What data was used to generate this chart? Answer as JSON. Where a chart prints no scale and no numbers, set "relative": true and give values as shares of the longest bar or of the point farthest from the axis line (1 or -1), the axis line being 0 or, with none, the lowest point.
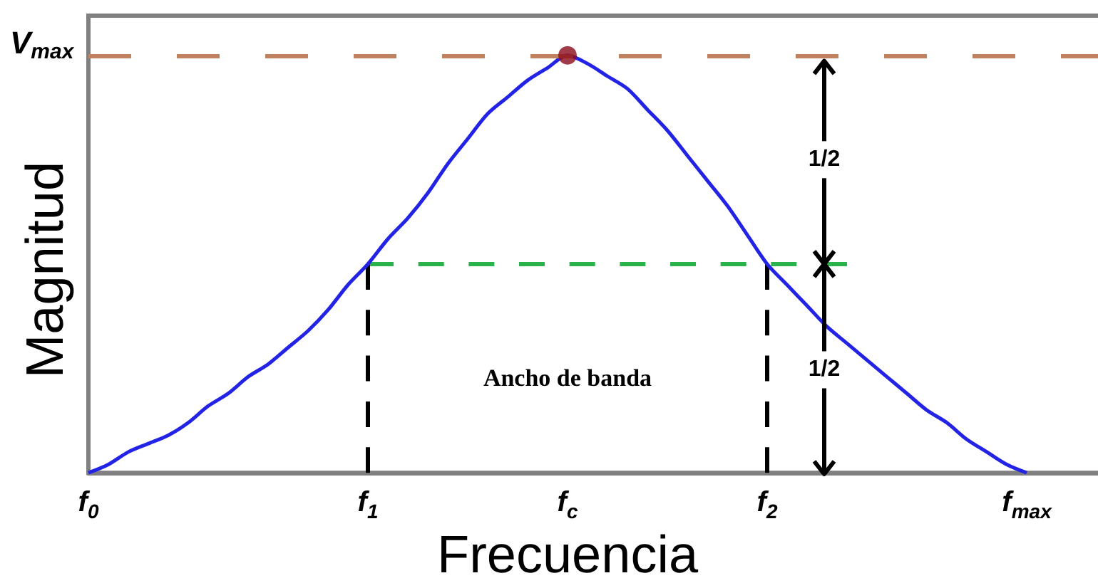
{
  "chart_data": {
    "type": "line",
    "relative": true,
    "xlabel": "Frecuencia",
    "ylabel": "Magnitud",
    "grid": false,
    "marker": "none",
    "categories": [
      "f$_{0}$",
      null,
      null,
      null,
      null,
      null,
      null,
      null,
      null,
      null,
      null,
      null,
      null,
      null,
      "f$_{1}$",
      null,
      null,
      null,
      null,
      null,
      null,
      null,
      null,
      null,
      "f$_{c}$",
      null,
      null,
      null,
      null,
      null,
      null,
      null,
      null,
      null,
      "f$_{2}$",
      null,
      null,
      null,
      null,
      null,
      null,
      null,
      null,
      null,
      null,
      null,
      null,
      "f$_{max}$",
      null,
      null,
      null,
      null
    ],
    "series": [
      {
        "color": "#2323e6",
        "values": [
          0,
          0.02,
          0.05,
          0.07,
          0.09,
          0.12,
          0.16,
          0.19,
          0.23,
          0.26,
          0.3,
          0.34,
          0.39,
          0.45,
          0.5,
          0.56,
          0.61,
          0.67,
          0.74,
          0.8,
          0.86,
          0.9,
          0.94,
          0.97,
          1,
          0.98,
          0.95,
          0.92,
          0.87,
          0.82,
          0.76,
          0.7,
          0.64,
          0.57,
          0.5,
          0.45,
          0.4,
          0.35,
          0.31,
          0.27,
          0.23,
          0.19,
          0.15,
          0.12,
          0.08,
          0.05,
          0.02,
          0,
          null,
          null,
          null,
          null
        ]
      },
      {
        "type": "line",
        "color": "#2bb34b",
        "line_style": "dashed",
        "values": [
          null,
          null,
          null,
          null,
          null,
          null,
          null,
          null,
          null,
          null,
          null,
          null,
          null,
          null,
          0.5,
          0.5,
          0.5,
          0.5,
          0.5,
          0.5,
          0.5,
          0.5,
          0.5,
          0.5,
          0.5,
          0.5,
          0.5,
          0.5,
          0.5,
          0.5,
          0.5,
          0.5,
          0.5,
          0.5,
          0.5,
          0.5,
          0.5,
          0.5,
          0.5,
          null,
          null,
          null,
          null,
          null,
          null,
          null,
          null,
          null,
          null,
          null,
          null,
          null
        ]
      },
      {
        "type": "line",
        "color": "#000000",
        "line_style": "dashed",
        "x": [
          "f$_{1}$",
          "f$_{1}$"
        ],
        "values": [
          0,
          0.5
        ]
      },
      {
        "type": "line",
        "color": "#000000",
        "line_style": "dashed",
        "x": [
          "f$_{2}$",
          "f$_{2}$"
        ],
        "values": [
          0,
          0.5
        ]
      },
      {
        "type": "scatter",
        "color": "#8b0a1a",
        "marker": "circle",
        "x": [
          "f$_{c}$"
        ],
        "values": [
          1
        ]
      }
    ],
    "ref_lines": [
      {
        "axis": "y",
        "value": 1,
        "label": "V$_{max}$",
        "color": "#c0825e",
        "line_style": "dashed"
      }
    ],
    "annotations": [
      "1/2",
      "Ancho de banda",
      "1/2"
    ]
  }
}
